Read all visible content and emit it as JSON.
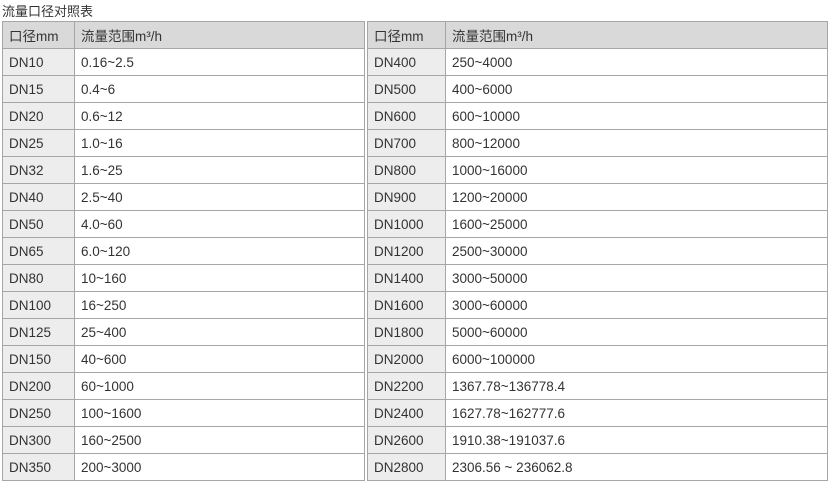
{
  "page": {
    "title": "流量口径对照表"
  },
  "colors": {
    "header_bg": "#d9d9d9",
    "label_column_bg": "#ededed",
    "value_column_bg": "#ffffff",
    "border": "#a6a6a6",
    "text": "#333333"
  },
  "tables": [
    {
      "headers": [
        "口径mm",
        "流量范围m³/h"
      ],
      "rows": [
        {
          "dn": "DN10",
          "range": "0.16~2.5"
        },
        {
          "dn": "DN15",
          "range": "0.4~6"
        },
        {
          "dn": "DN20",
          "range": "0.6~12"
        },
        {
          "dn": "DN25",
          "range": "1.0~16"
        },
        {
          "dn": "DN32",
          "range": "1.6~25"
        },
        {
          "dn": "DN40",
          "range": "2.5~40"
        },
        {
          "dn": "DN50",
          "range": "4.0~60"
        },
        {
          "dn": "DN65",
          "range": "6.0~120"
        },
        {
          "dn": "DN80",
          "range": "10~160"
        },
        {
          "dn": "DN100",
          "range": "16~250"
        },
        {
          "dn": "DN125",
          "range": "25~400"
        },
        {
          "dn": "DN150",
          "range": "40~600"
        },
        {
          "dn": "DN200",
          "range": "60~1000"
        },
        {
          "dn": "DN250",
          "range": "100~1600"
        },
        {
          "dn": "DN300",
          "range": "160~2500"
        },
        {
          "dn": "DN350",
          "range": "200~3000"
        }
      ]
    },
    {
      "headers": [
        "口径mm",
        "流量范围m³/h"
      ],
      "rows": [
        {
          "dn": "DN400",
          "range": "250~4000"
        },
        {
          "dn": "DN500",
          "range": "400~6000"
        },
        {
          "dn": "DN600",
          "range": "600~10000"
        },
        {
          "dn": "DN700",
          "range": "800~12000"
        },
        {
          "dn": "DN800",
          "range": "1000~16000"
        },
        {
          "dn": "DN900",
          "range": "1200~20000"
        },
        {
          "dn": "DN1000",
          "range": "1600~25000"
        },
        {
          "dn": "DN1200",
          "range": "2500~30000"
        },
        {
          "dn": "DN1400",
          "range": "3000~50000"
        },
        {
          "dn": "DN1600",
          "range": "3000~60000"
        },
        {
          "dn": "DN1800",
          "range": "5000~60000"
        },
        {
          "dn": "DN2000",
          "range": "6000~100000"
        },
        {
          "dn": "DN2200",
          "range": "1367.78~136778.4"
        },
        {
          "dn": "DN2400",
          "range": "1627.78~162777.6"
        },
        {
          "dn": "DN2600",
          "range": "1910.38~191037.6"
        },
        {
          "dn": "DN2800",
          "range": "2306.56 ~ 236062.8"
        }
      ]
    }
  ]
}
